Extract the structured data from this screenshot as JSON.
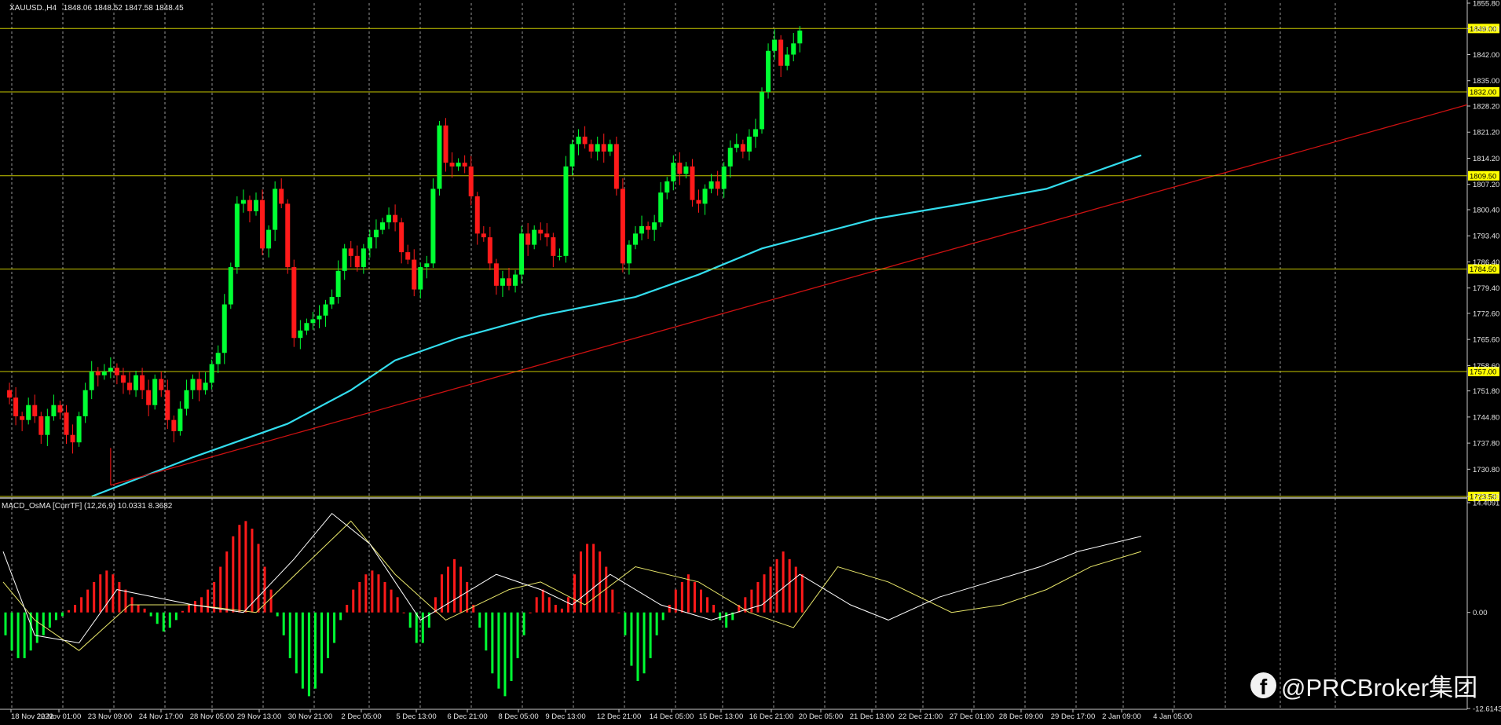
{
  "chart_data": {
    "type": "candlestick",
    "symbol_info": {
      "symbol": "XAUUSD.,H4",
      "ohlc": "1848.06 1848.52 1847.58 1848.45"
    },
    "price_axis": {
      "ylim": [
        1723.5,
        1855.8
      ],
      "ticks": [
        1855.8,
        1849.0,
        1842.0,
        1835.0,
        1828.2,
        1821.2,
        1814.2,
        1807.2,
        1800.4,
        1793.4,
        1786.4,
        1779.4,
        1772.6,
        1765.6,
        1758.6,
        1751.8,
        1744.8,
        1737.8,
        1730.8,
        1723.5
      ],
      "tick_labels": [
        "1855.80",
        "1849.00",
        "1842.00",
        "1835.00",
        "1828.20",
        "1821.20",
        "1814.20",
        "1807.20",
        "1800.40",
        "1793.40",
        "1786.40",
        "1779.40",
        "1772.60",
        "1765.60",
        "1758.60",
        "1751.80",
        "1744.80",
        "1737.80",
        "1730.80",
        "1723.50"
      ]
    },
    "levels": [
      {
        "value": 1849.0,
        "label": "1849.00"
      },
      {
        "value": 1832.0,
        "label": "1832.00"
      },
      {
        "value": 1809.5,
        "label": "1809.50"
      },
      {
        "value": 1784.5,
        "label": "1784.50"
      },
      {
        "value": 1757.0,
        "label": "1757.00"
      },
      {
        "value": 1723.5,
        "label": "1723.50"
      }
    ],
    "time_labels": [
      "18 Nov 2022",
      "22 Nov 01:00",
      "23 Nov 09:00",
      "24 Nov 17:00",
      "28 Nov 05:00",
      "29 Nov 13:00",
      "30 Nov 21:00",
      "2 Dec 05:00",
      "5 Dec 13:00",
      "6 Dec 21:00",
      "8 Dec 05:00",
      "9 Dec 13:00",
      "12 Dec 21:00",
      "14 Dec 05:00",
      "15 Dec 13:00",
      "16 Dec 21:00",
      "20 Dec 05:00",
      "21 Dec 13:00",
      "22 Dec 21:00",
      "27 Dec 01:00",
      "28 Dec 09:00",
      "29 Dec 17:00",
      "2 Jan 09:00",
      "4 Jan 05:00"
    ],
    "trendline": {
      "start_bar": 17,
      "start_price": 1726.5,
      "end_bar": 140,
      "end_price": 1785.0,
      "extend_right": true
    },
    "close_path": [
      1752,
      1750,
      1745,
      1744,
      1748,
      1745,
      1740,
      1745,
      1748,
      1746,
      1740,
      1738,
      1745,
      1752,
      1757,
      1756,
      1757,
      1758,
      1756,
      1754,
      1752,
      1756,
      1752,
      1748,
      1755,
      1752,
      1744,
      1741,
      1747,
      1752,
      1755,
      1752,
      1754,
      1759,
      1762,
      1775,
      1785,
      1802,
      1803,
      1800,
      1803,
      1790,
      1795,
      1806,
      1802,
      1785,
      1766,
      1768,
      1770,
      1771,
      1772,
      1775,
      1777,
      1784,
      1790,
      1788,
      1785,
      1790,
      1793,
      1795,
      1797,
      1799,
      1797,
      1789,
      1787,
      1779,
      1785,
      1786,
      1806,
      1823,
      1813,
      1812,
      1813,
      1812,
      1804,
      1794,
      1793,
      1786,
      1780,
      1782,
      1780,
      1783,
      1794,
      1791,
      1795,
      1794,
      1793,
      1788,
      1788,
      1812,
      1818,
      1820,
      1818,
      1816,
      1818,
      1816,
      1818,
      1806,
      1786,
      1791,
      1794,
      1796,
      1795,
      1797,
      1805,
      1808,
      1813,
      1810,
      1812,
      1803,
      1802,
      1806,
      1808,
      1806,
      1812,
      1817,
      1818,
      1816,
      1820,
      1822,
      1832,
      1843,
      1846,
      1839,
      1842,
      1845,
      1848.45
    ],
    "ma_points": [
      [
        14,
        1723.5
      ],
      [
        30,
        1734
      ],
      [
        45,
        1743
      ],
      [
        55,
        1752
      ],
      [
        62,
        1760
      ],
      [
        72,
        1766
      ],
      [
        85,
        1772
      ],
      [
        100,
        1777
      ],
      [
        110,
        1783
      ],
      [
        120,
        1790
      ],
      [
        138,
        1798
      ],
      [
        152,
        1802
      ],
      [
        165,
        1806
      ],
      [
        175,
        1812
      ],
      [
        180,
        1815
      ]
    ],
    "macd": {
      "label": "MACD_OsMA [CurrTF] (12,26,9) 10.0331 8.3682",
      "ylim": [
        -12.6143,
        14.4091
      ],
      "tick_labels": [
        "14.4091",
        "0.00",
        "-12.6143"
      ],
      "histogram": [
        -3,
        -5,
        -6,
        -6,
        -5,
        -4,
        -3,
        -2,
        -1,
        -0.5,
        0.3,
        1,
        2,
        3,
        4,
        5,
        5.5,
        5,
        4,
        3,
        2,
        1,
        0.5,
        -0.5,
        -1.5,
        -2.5,
        -2,
        -1,
        0.2,
        1,
        1.5,
        2,
        3,
        4,
        6,
        8,
        10,
        11.5,
        12,
        11,
        9,
        6,
        3,
        -0.5,
        -3,
        -6,
        -8,
        -10,
        -11,
        -10,
        -8,
        -6,
        -4,
        -1,
        1,
        3,
        4,
        5,
        5.5,
        5,
        4,
        3,
        2,
        0,
        -2,
        -4,
        -4,
        -2,
        2,
        5,
        6,
        7,
        6,
        4,
        1,
        -2,
        -5,
        -8,
        -10,
        -11,
        -9,
        -6,
        -3,
        0,
        2,
        3,
        2,
        1,
        0.5,
        2,
        5,
        8,
        9,
        9,
        8,
        6,
        3,
        0,
        -3,
        -7,
        -9,
        -8,
        -6,
        -3,
        -1,
        1,
        3,
        4,
        5,
        4,
        3,
        2,
        1,
        -1,
        -2,
        -1,
        1,
        2,
        3,
        4,
        5,
        6,
        7,
        8,
        7,
        6,
        5
      ],
      "signal_points": [
        [
          0,
          4
        ],
        [
          5,
          -1
        ],
        [
          12,
          -5
        ],
        [
          20,
          1
        ],
        [
          30,
          1
        ],
        [
          40,
          0
        ],
        [
          50,
          8
        ],
        [
          55,
          12
        ],
        [
          62,
          5
        ],
        [
          70,
          -1
        ],
        [
          80,
          3
        ],
        [
          85,
          4
        ],
        [
          92,
          1
        ],
        [
          100,
          6
        ],
        [
          110,
          4
        ],
        [
          118,
          0
        ],
        [
          125,
          -2
        ],
        [
          132,
          6
        ],
        [
          140,
          4
        ],
        [
          150,
          0
        ],
        [
          158,
          1
        ],
        [
          165,
          3
        ],
        [
          172,
          6
        ],
        [
          180,
          8
        ]
      ],
      "macd_points": [
        [
          0,
          8
        ],
        [
          5,
          -3
        ],
        [
          12,
          -4
        ],
        [
          18,
          3
        ],
        [
          30,
          1
        ],
        [
          38,
          0
        ],
        [
          46,
          7
        ],
        [
          52,
          13
        ],
        [
          58,
          9
        ],
        [
          66,
          -1
        ],
        [
          78,
          5
        ],
        [
          85,
          3
        ],
        [
          90,
          1
        ],
        [
          96,
          5
        ],
        [
          104,
          1
        ],
        [
          112,
          -1
        ],
        [
          120,
          1
        ],
        [
          126,
          5
        ],
        [
          134,
          1
        ],
        [
          140,
          -1
        ],
        [
          148,
          2
        ],
        [
          156,
          4
        ],
        [
          164,
          6
        ],
        [
          170,
          8
        ],
        [
          180,
          10
        ]
      ]
    }
  },
  "watermark": {
    "icon": "facebook-icon",
    "text": "@PRCBroker集团"
  },
  "colors": {
    "bull": "#00ff33",
    "bear": "#ff1a1a",
    "level": "#c8c800",
    "level_tag": "#ffff00",
    "ma": "#33ddee",
    "trendline": "#cc1111",
    "macd_line": "#ffffff",
    "signal_line": "#e8e66a",
    "grid": "#c8c8c8"
  }
}
